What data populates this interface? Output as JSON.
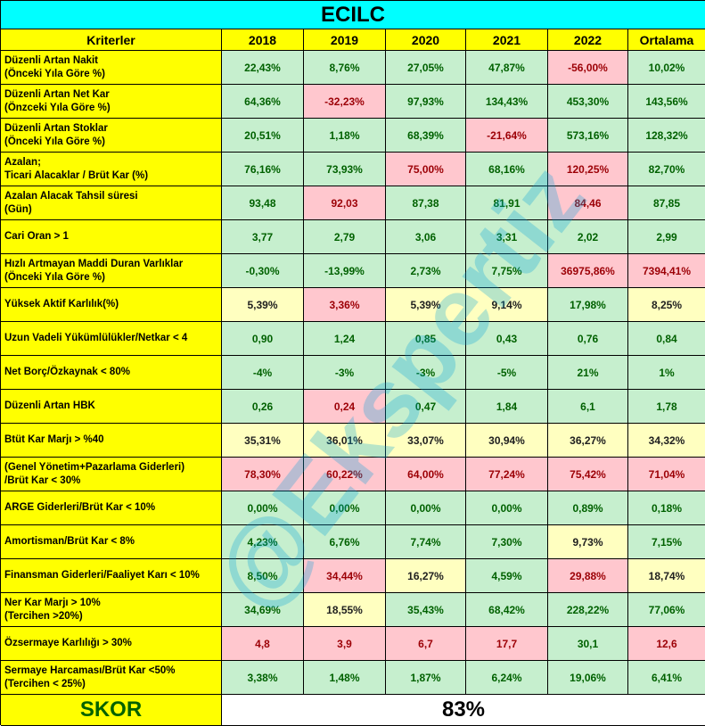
{
  "title": "ECILC",
  "header": [
    "Kriterler",
    "2018",
    "2019",
    "2020",
    "2021",
    "2022",
    "Ortalama"
  ],
  "rows": [
    {
      "criteria": [
        "Düzenli Artan Nakit",
        "(Önceki Yıla Göre %)"
      ],
      "values": [
        "22,43%",
        "8,76%",
        "27,05%",
        "47,87%",
        "-56,00%",
        "10,02%"
      ],
      "tones": [
        "good",
        "good",
        "good",
        "good",
        "bad",
        "good"
      ]
    },
    {
      "criteria": [
        "Düzenli Artan Net Kar",
        "(Önzceki Yıla Göre %)"
      ],
      "values": [
        "64,36%",
        "-32,23%",
        "97,93%",
        "134,43%",
        "453,30%",
        "143,56%"
      ],
      "tones": [
        "good",
        "bad",
        "good",
        "good",
        "good",
        "good"
      ]
    },
    {
      "criteria": [
        "Düzenli Artan Stoklar",
        "(Önceki Yıla Göre %)"
      ],
      "values": [
        "20,51%",
        "1,18%",
        "68,39%",
        "-21,64%",
        "573,16%",
        "128,32%"
      ],
      "tones": [
        "good",
        "good",
        "good",
        "bad",
        "good",
        "good"
      ]
    },
    {
      "criteria": [
        "Azalan;",
        "Ticari Alacaklar / Brüt Kar (%)"
      ],
      "values": [
        "76,16%",
        "73,93%",
        "75,00%",
        "68,16%",
        "120,25%",
        "82,70%"
      ],
      "tones": [
        "good",
        "good",
        "bad",
        "good",
        "bad",
        "good"
      ]
    },
    {
      "criteria": [
        "Azalan Alacak Tahsil süresi",
        "(Gün)"
      ],
      "values": [
        "93,48",
        "92,03",
        "87,38",
        "81,91",
        "84,46",
        "87,85"
      ],
      "tones": [
        "good",
        "bad",
        "good",
        "good",
        "bad",
        "good"
      ]
    },
    {
      "criteria": [
        "Cari Oran > 1"
      ],
      "values": [
        "3,77",
        "2,79",
        "3,06",
        "3,31",
        "2,02",
        "2,99"
      ],
      "tones": [
        "good",
        "good",
        "good",
        "good",
        "good",
        "good"
      ]
    },
    {
      "criteria": [
        "Hızlı Artmayan Maddi Duran Varlıklar",
        "(Önceki Yıla Göre %)"
      ],
      "values": [
        "-0,30%",
        "-13,99%",
        "2,73%",
        "7,75%",
        "36975,86%",
        "7394,41%"
      ],
      "tones": [
        "good",
        "good",
        "good",
        "good",
        "bad",
        "bad"
      ]
    },
    {
      "criteria": [
        "Yüksek Aktif Karlılık(%)"
      ],
      "values": [
        "5,39%",
        "3,36%",
        "5,39%",
        "9,14%",
        "17,98%",
        "8,25%"
      ],
      "tones": [
        "neutral",
        "bad",
        "neutral",
        "neutral",
        "good",
        "neutral"
      ]
    },
    {
      "criteria": [
        "Uzun Vadeli Yükümlülükler/Netkar < 4"
      ],
      "values": [
        "0,90",
        "1,24",
        "0,85",
        "0,43",
        "0,76",
        "0,84"
      ],
      "tones": [
        "good",
        "good",
        "good",
        "good",
        "good",
        "good"
      ]
    },
    {
      "criteria": [
        "Net Borç/Özkaynak < 80%"
      ],
      "values": [
        "-4%",
        "-3%",
        "-3%",
        "-5%",
        "21%",
        "1%"
      ],
      "tones": [
        "good",
        "good",
        "good",
        "good",
        "good",
        "good"
      ]
    },
    {
      "criteria": [
        "Düzenli Artan HBK"
      ],
      "values": [
        "0,26",
        "0,24",
        "0,47",
        "1,84",
        "6,1",
        "1,78"
      ],
      "tones": [
        "good",
        "bad",
        "good",
        "good",
        "good",
        "good"
      ]
    },
    {
      "criteria": [
        "Btüt Kar Marjı > %40"
      ],
      "values": [
        "35,31%",
        "36,01%",
        "33,07%",
        "30,94%",
        "36,27%",
        "34,32%"
      ],
      "tones": [
        "neutral",
        "neutral",
        "neutral",
        "neutral",
        "neutral",
        "neutral"
      ]
    },
    {
      "criteria": [
        "(Genel Yönetim+Pazarlama Giderleri)",
        "/Brüt Kar < 30%"
      ],
      "values": [
        "78,30%",
        "60,22%",
        "64,00%",
        "77,24%",
        "75,42%",
        "71,04%"
      ],
      "tones": [
        "bad",
        "bad",
        "bad",
        "bad",
        "bad",
        "bad"
      ]
    },
    {
      "criteria": [
        "ARGE Giderleri/Brüt Kar < 10%"
      ],
      "values": [
        "0,00%",
        "0,00%",
        "0,00%",
        "0,00%",
        "0,89%",
        "0,18%"
      ],
      "tones": [
        "good",
        "good",
        "good",
        "good",
        "good",
        "good"
      ]
    },
    {
      "criteria": [
        "Amortisman/Brüt Kar < 8%"
      ],
      "values": [
        "4,23%",
        "6,76%",
        "7,74%",
        "7,30%",
        "9,73%",
        "7,15%"
      ],
      "tones": [
        "good",
        "good",
        "good",
        "good",
        "neutral",
        "good"
      ]
    },
    {
      "criteria": [
        "Finansman Giderleri/Faaliyet Karı < 10%"
      ],
      "values": [
        "8,50%",
        "34,44%",
        "16,27%",
        "4,59%",
        "29,88%",
        "18,74%"
      ],
      "tones": [
        "good",
        "bad",
        "neutral",
        "good",
        "bad",
        "neutral"
      ]
    },
    {
      "criteria": [
        "Ner Kar Marjı > 10%",
        "(Tercihen >20%)"
      ],
      "values": [
        "34,69%",
        "18,55%",
        "35,43%",
        "68,42%",
        "228,22%",
        "77,06%"
      ],
      "tones": [
        "good",
        "neutral",
        "good",
        "good",
        "good",
        "good"
      ]
    },
    {
      "criteria": [
        "Özsermaye Karlılığı > 30%"
      ],
      "values": [
        "4,8",
        "3,9",
        "6,7",
        "17,7",
        "30,1",
        "12,6"
      ],
      "tones": [
        "bad",
        "bad",
        "bad",
        "bad",
        "good",
        "bad"
      ]
    },
    {
      "criteria": [
        "Sermaye Harcaması/Brüt Kar <50%",
        "(Tercihen < 25%)"
      ],
      "values": [
        "3,38%",
        "1,48%",
        "1,87%",
        "6,24%",
        "19,06%",
        "6,41%"
      ],
      "tones": [
        "good",
        "good",
        "good",
        "good",
        "good",
        "good"
      ]
    }
  ],
  "score": {
    "label": "SKOR",
    "value": "83%"
  },
  "watermark": "@Ekspertiz"
}
